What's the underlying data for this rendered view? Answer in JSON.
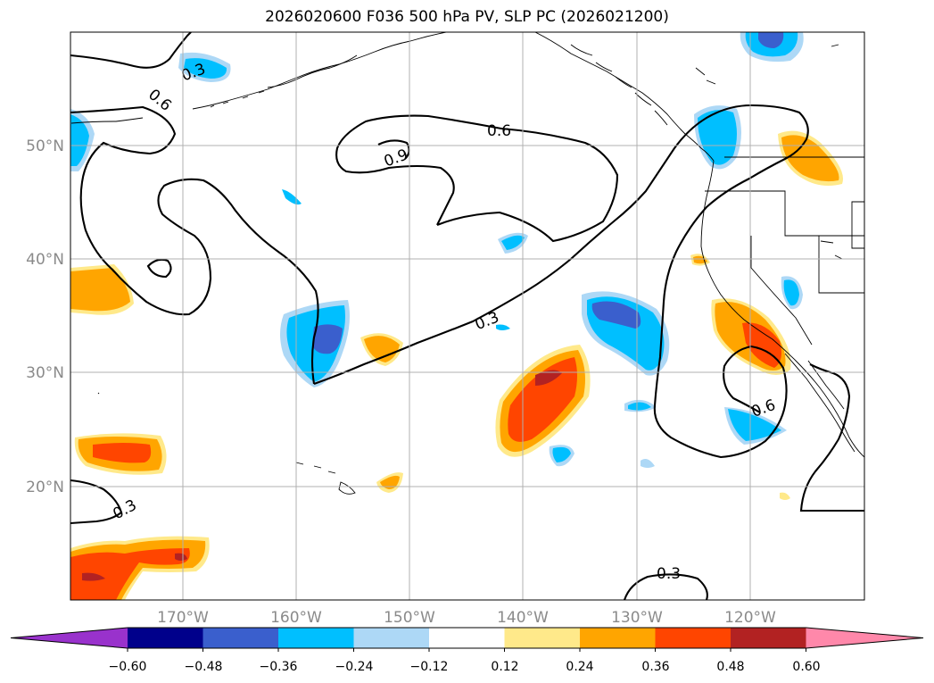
{
  "title": "2026020600 F036 500 hPa PV, SLP PC (2026021200)",
  "lat_labels": [
    "50°N",
    "40°N",
    "30°N",
    "20°N"
  ],
  "lon_labels": [
    "170°W",
    "160°W",
    "150°W",
    "140°W",
    "130°W",
    "120°W"
  ],
  "colorbar": {
    "ticks": [
      "−0.60",
      "−0.48",
      "−0.36",
      "−0.24",
      "−0.12",
      "0.12",
      "0.24",
      "0.36",
      "0.48",
      "0.60"
    ],
    "colors": [
      "#9932cc",
      "#00008b",
      "#3a5fcd",
      "#00bfff",
      "#add8f6",
      "#ffffff",
      "#ffe98a",
      "#ffa500",
      "#ff4500",
      "#b22222",
      "#ff88aa"
    ]
  },
  "contour_labels": [
    "0.3",
    "0.6",
    "0.6",
    "0.9",
    "0.3",
    "0.6",
    "0.3",
    "0.3"
  ]
}
